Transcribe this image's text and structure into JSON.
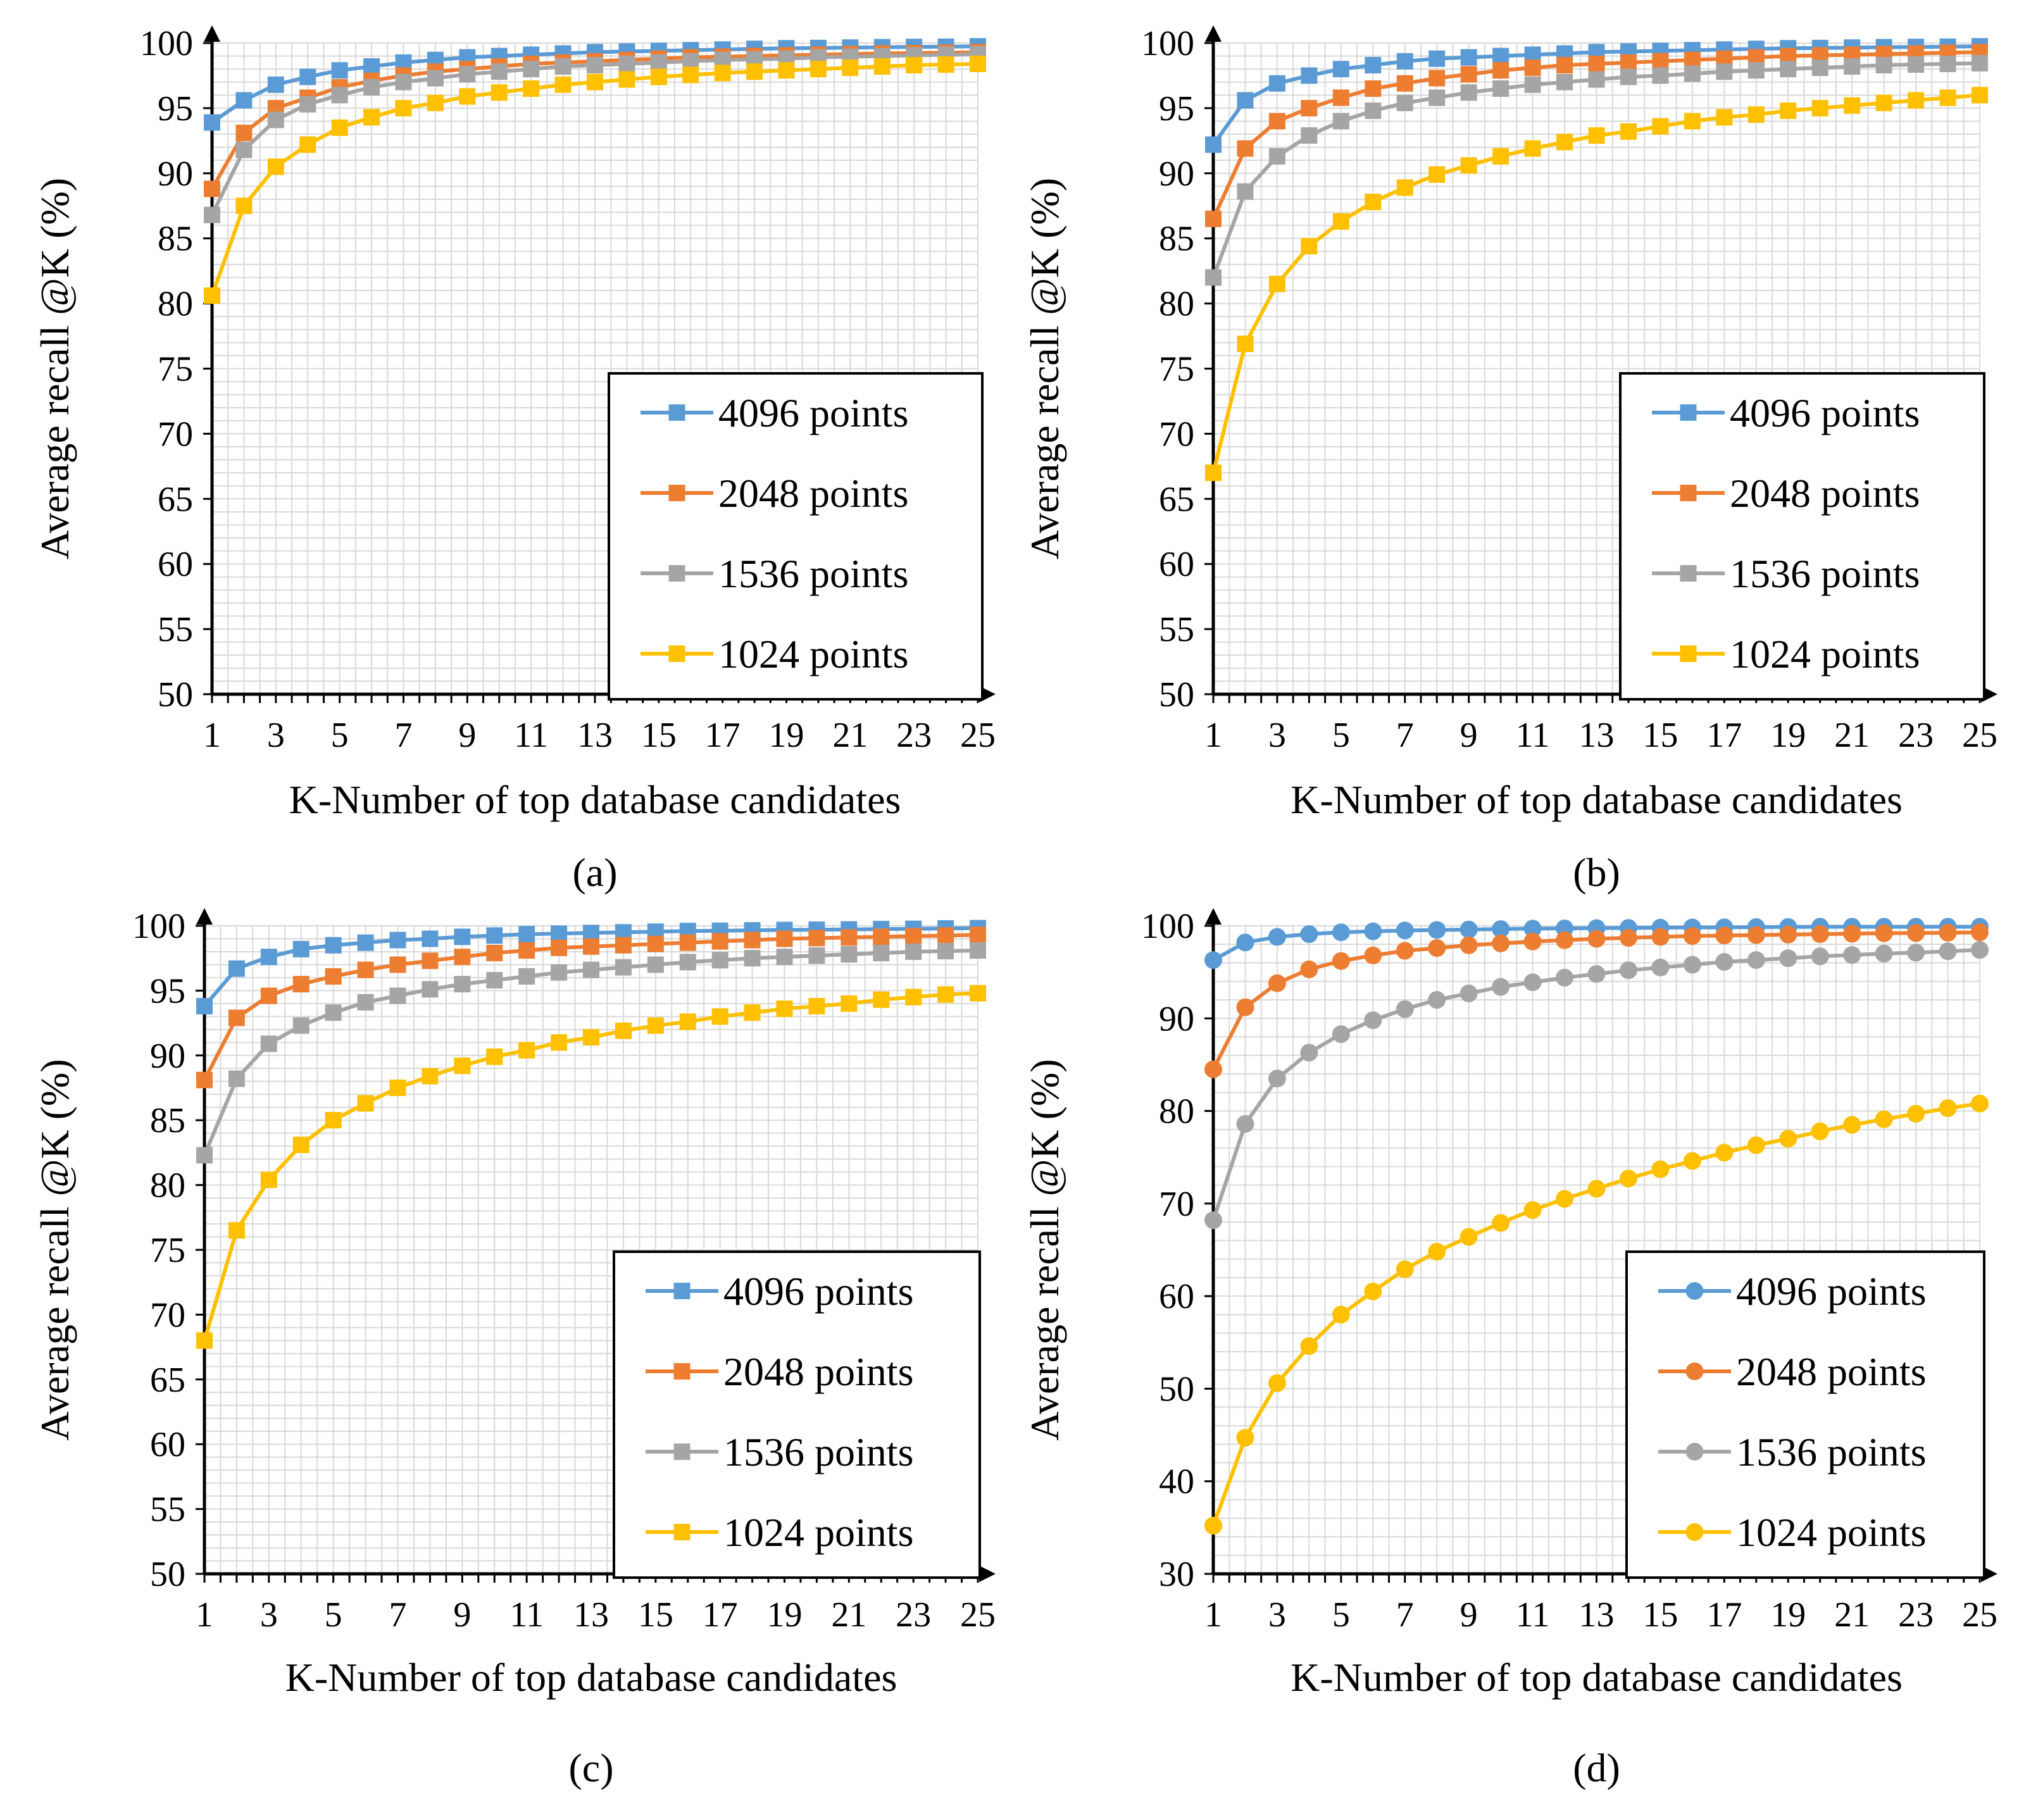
{
  "colors": {
    "s4096": "#5B9BD5",
    "s2048": "#ED7D31",
    "s1536": "#A5A5A5",
    "s1024": "#FFC000",
    "grid": "#D9D9D9",
    "axis": "#000000"
  },
  "chart_data": [
    {
      "type": "line",
      "panel_label": "(a)",
      "marker": "square",
      "xlabel": "K-Number of top database candidates",
      "ylabel": "Average recall @K (%)",
      "xlim": [
        1,
        25
      ],
      "ylim": [
        50,
        100
      ],
      "yticks": [
        50,
        55,
        60,
        65,
        70,
        75,
        80,
        85,
        90,
        95,
        100
      ],
      "xticks": [
        1,
        3,
        5,
        7,
        9,
        11,
        13,
        15,
        17,
        19,
        21,
        23,
        25
      ],
      "grid": true,
      "legend_position": "lower-right",
      "x": [
        1,
        2,
        3,
        4,
        5,
        6,
        7,
        8,
        9,
        10,
        11,
        12,
        13,
        14,
        15,
        16,
        17,
        18,
        19,
        20,
        21,
        22,
        23,
        24,
        25
      ],
      "series": [
        {
          "name": "4096 points",
          "color_key": "s4096",
          "values": [
            93.9,
            95.6,
            96.8,
            97.4,
            97.9,
            98.2,
            98.5,
            98.7,
            98.9,
            99.0,
            99.1,
            99.2,
            99.3,
            99.35,
            99.4,
            99.45,
            99.5,
            99.55,
            99.6,
            99.62,
            99.65,
            99.68,
            99.7,
            99.72,
            99.75
          ]
        },
        {
          "name": "2048 points",
          "color_key": "s2048",
          "values": [
            88.8,
            93.1,
            95.0,
            95.8,
            96.6,
            97.1,
            97.5,
            97.8,
            98.0,
            98.2,
            98.4,
            98.5,
            98.6,
            98.7,
            98.8,
            98.9,
            98.95,
            99.0,
            99.05,
            99.1,
            99.15,
            99.2,
            99.22,
            99.25,
            99.3
          ]
        },
        {
          "name": "1536 points",
          "color_key": "s1536",
          "values": [
            86.8,
            91.8,
            94.1,
            95.3,
            96.0,
            96.6,
            97.0,
            97.3,
            97.6,
            97.8,
            98.0,
            98.2,
            98.3,
            98.4,
            98.5,
            98.6,
            98.7,
            98.75,
            98.8,
            98.9,
            98.95,
            99.0,
            99.05,
            99.1,
            99.15
          ]
        },
        {
          "name": "1024 points",
          "color_key": "s1024",
          "values": [
            80.6,
            87.5,
            90.5,
            92.2,
            93.5,
            94.3,
            95.0,
            95.4,
            95.9,
            96.2,
            96.5,
            96.8,
            97.0,
            97.2,
            97.4,
            97.55,
            97.7,
            97.8,
            97.9,
            98.0,
            98.1,
            98.2,
            98.3,
            98.35,
            98.4
          ]
        }
      ]
    },
    {
      "type": "line",
      "panel_label": "(b)",
      "marker": "square",
      "xlabel": "K-Number of top database candidates",
      "ylabel": "Average recall @K (%)",
      "xlim": [
        1,
        25
      ],
      "ylim": [
        50,
        100
      ],
      "yticks": [
        50,
        55,
        60,
        65,
        70,
        75,
        80,
        85,
        90,
        95,
        100
      ],
      "xticks": [
        1,
        3,
        5,
        7,
        9,
        11,
        13,
        15,
        17,
        19,
        21,
        23,
        25
      ],
      "grid": true,
      "legend_position": "lower-right",
      "x": [
        1,
        2,
        3,
        4,
        5,
        6,
        7,
        8,
        9,
        10,
        11,
        12,
        13,
        14,
        15,
        16,
        17,
        18,
        19,
        20,
        21,
        22,
        23,
        24,
        25
      ],
      "series": [
        {
          "name": "4096 points",
          "color_key": "s4096",
          "values": [
            92.2,
            95.6,
            96.9,
            97.5,
            98.0,
            98.3,
            98.6,
            98.8,
            98.9,
            99.0,
            99.1,
            99.2,
            99.3,
            99.35,
            99.4,
            99.45,
            99.5,
            99.55,
            99.6,
            99.62,
            99.65,
            99.68,
            99.7,
            99.72,
            99.75
          ]
        },
        {
          "name": "2048 points",
          "color_key": "s2048",
          "values": [
            86.5,
            91.9,
            94.0,
            95.0,
            95.8,
            96.5,
            96.9,
            97.3,
            97.6,
            97.9,
            98.1,
            98.3,
            98.4,
            98.5,
            98.6,
            98.7,
            98.8,
            98.9,
            99.0,
            99.05,
            99.1,
            99.15,
            99.2,
            99.25,
            99.3
          ]
        },
        {
          "name": "1536 points",
          "color_key": "s1536",
          "values": [
            82.0,
            88.6,
            91.3,
            92.9,
            94.0,
            94.8,
            95.4,
            95.8,
            96.2,
            96.5,
            96.8,
            97.0,
            97.2,
            97.4,
            97.5,
            97.65,
            97.8,
            97.9,
            98.0,
            98.1,
            98.2,
            98.3,
            98.35,
            98.4,
            98.45
          ]
        },
        {
          "name": "1024 points",
          "color_key": "s1024",
          "values": [
            67.0,
            76.9,
            81.5,
            84.4,
            86.3,
            87.8,
            88.9,
            89.9,
            90.6,
            91.3,
            91.9,
            92.4,
            92.9,
            93.2,
            93.6,
            94.0,
            94.3,
            94.5,
            94.8,
            95.0,
            95.2,
            95.4,
            95.6,
            95.8,
            96.0
          ]
        }
      ]
    },
    {
      "type": "line",
      "panel_label": "(c)",
      "marker": "square",
      "xlabel": "K-Number of top database candidates",
      "ylabel": "Average recall @K (%)",
      "xlim": [
        1,
        25
      ],
      "ylim": [
        50,
        100
      ],
      "yticks": [
        50,
        55,
        60,
        65,
        70,
        75,
        80,
        85,
        90,
        95,
        100
      ],
      "xticks": [
        1,
        3,
        5,
        7,
        9,
        11,
        13,
        15,
        17,
        19,
        21,
        23,
        25
      ],
      "grid": true,
      "legend_position": "lower-right",
      "x": [
        1,
        2,
        3,
        4,
        5,
        6,
        7,
        8,
        9,
        10,
        11,
        12,
        13,
        14,
        15,
        16,
        17,
        18,
        19,
        20,
        21,
        22,
        23,
        24,
        25
      ],
      "series": [
        {
          "name": "4096 points",
          "color_key": "s4096",
          "values": [
            93.8,
            96.7,
            97.6,
            98.2,
            98.5,
            98.7,
            98.9,
            99.0,
            99.15,
            99.25,
            99.35,
            99.4,
            99.45,
            99.5,
            99.55,
            99.6,
            99.62,
            99.65,
            99.68,
            99.7,
            99.72,
            99.75,
            99.77,
            99.8,
            99.82
          ]
        },
        {
          "name": "2048 points",
          "color_key": "s2048",
          "values": [
            88.1,
            92.9,
            94.6,
            95.5,
            96.1,
            96.6,
            97.0,
            97.3,
            97.6,
            97.9,
            98.1,
            98.3,
            98.4,
            98.5,
            98.6,
            98.7,
            98.8,
            98.9,
            99.0,
            99.05,
            99.1,
            99.15,
            99.2,
            99.25,
            99.3
          ]
        },
        {
          "name": "1536 points",
          "color_key": "s1536",
          "values": [
            82.3,
            88.2,
            90.9,
            92.3,
            93.3,
            94.1,
            94.6,
            95.1,
            95.5,
            95.8,
            96.1,
            96.4,
            96.6,
            96.8,
            97.0,
            97.2,
            97.35,
            97.5,
            97.6,
            97.7,
            97.8,
            97.9,
            98.0,
            98.05,
            98.1
          ]
        },
        {
          "name": "1024 points",
          "color_key": "s1024",
          "values": [
            68.0,
            76.5,
            80.4,
            83.1,
            85.0,
            86.3,
            87.5,
            88.4,
            89.2,
            89.9,
            90.4,
            91.0,
            91.4,
            91.9,
            92.3,
            92.6,
            93.0,
            93.3,
            93.6,
            93.8,
            94.0,
            94.3,
            94.5,
            94.7,
            94.8
          ]
        }
      ]
    },
    {
      "type": "line",
      "panel_label": "(d)",
      "marker": "circle",
      "xlabel": "K-Number of top database candidates",
      "ylabel": "Average recall @K (%)",
      "xlim": [
        1,
        25
      ],
      "ylim": [
        30,
        100
      ],
      "yticks": [
        30,
        40,
        50,
        60,
        70,
        80,
        90,
        100
      ],
      "xticks": [
        1,
        3,
        5,
        7,
        9,
        11,
        13,
        15,
        17,
        19,
        21,
        23,
        25
      ],
      "grid": true,
      "legend_position": "lower-right",
      "x": [
        1,
        2,
        3,
        4,
        5,
        6,
        7,
        8,
        9,
        10,
        11,
        12,
        13,
        14,
        15,
        16,
        17,
        18,
        19,
        20,
        21,
        22,
        23,
        24,
        25
      ],
      "series": [
        {
          "name": "4096 points",
          "color_key": "s4096",
          "values": [
            96.3,
            98.2,
            98.8,
            99.1,
            99.3,
            99.4,
            99.5,
            99.55,
            99.6,
            99.65,
            99.7,
            99.72,
            99.75,
            99.77,
            99.8,
            99.82,
            99.84,
            99.86,
            99.88,
            99.9,
            99.9,
            99.9,
            99.9,
            99.9,
            99.9
          ]
        },
        {
          "name": "2048 points",
          "color_key": "s2048",
          "values": [
            84.5,
            91.2,
            93.8,
            95.3,
            96.2,
            96.8,
            97.3,
            97.6,
            97.9,
            98.1,
            98.3,
            98.45,
            98.6,
            98.7,
            98.8,
            98.9,
            98.95,
            99.0,
            99.05,
            99.1,
            99.15,
            99.2,
            99.22,
            99.25,
            99.3
          ]
        },
        {
          "name": "1536 points",
          "color_key": "s1536",
          "values": [
            68.2,
            78.6,
            83.5,
            86.3,
            88.3,
            89.8,
            91.0,
            92.0,
            92.7,
            93.4,
            93.9,
            94.4,
            94.8,
            95.2,
            95.5,
            95.8,
            96.1,
            96.3,
            96.5,
            96.7,
            96.85,
            97.0,
            97.1,
            97.25,
            97.4
          ]
        },
        {
          "name": "1024 points",
          "color_key": "s1024",
          "values": [
            35.2,
            44.7,
            50.6,
            54.6,
            58.0,
            60.5,
            62.9,
            64.8,
            66.4,
            67.9,
            69.3,
            70.5,
            71.6,
            72.7,
            73.7,
            74.6,
            75.5,
            76.3,
            77.0,
            77.8,
            78.5,
            79.1,
            79.7,
            80.3,
            80.8
          ]
        }
      ]
    }
  ]
}
